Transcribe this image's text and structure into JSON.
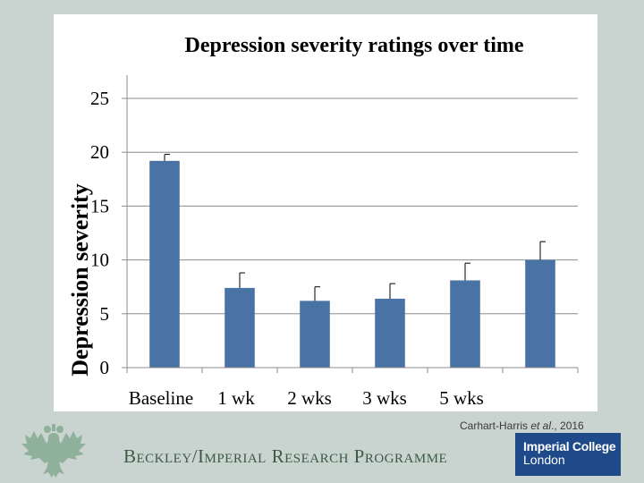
{
  "chart_data": {
    "type": "bar",
    "title": "Depression severity ratings over time",
    "xlabel": "",
    "ylabel": "Depression severity",
    "ylim": [
      0,
      25
    ],
    "yticks": [
      0,
      5,
      10,
      15,
      20,
      25
    ],
    "grid": true,
    "categories": [
      "Baseline",
      "1 wk",
      "2 wks",
      "3 wks",
      "5 wks",
      ""
    ],
    "values": [
      19.2,
      7.4,
      6.2,
      6.4,
      8.1,
      10.0
    ],
    "error_upper": [
      19.8,
      8.8,
      7.5,
      7.8,
      9.7,
      11.7
    ],
    "bar_color": "#4a73a5"
  },
  "footer": {
    "citation_prefix": "Carhart-Harris ",
    "citation_etal": "et al",
    "citation_suffix": "., 2016",
    "programme": "Beckley/Imperial Research Programme",
    "logo_line1": "Imperial College",
    "logo_line2": "London",
    "eagle": "double-headed-eagle-icon"
  }
}
